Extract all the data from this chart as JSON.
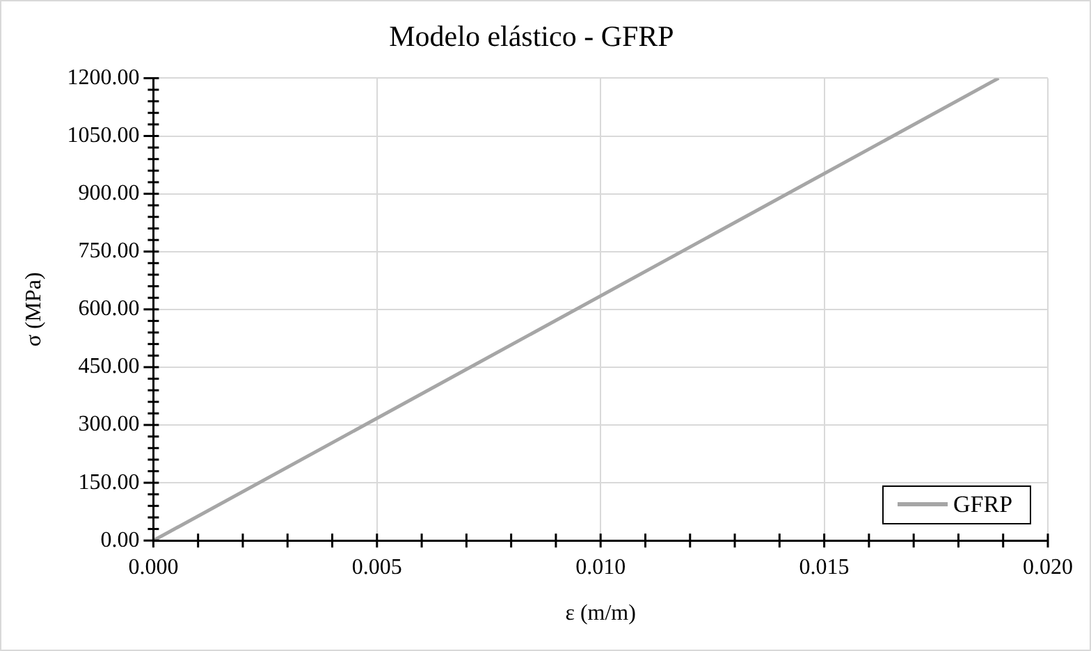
{
  "chart_data": {
    "type": "line",
    "title": "Modelo elástico - GFRP",
    "xlabel": "ε (m/m)",
    "ylabel": "σ (MPa)",
    "x": [
      0,
      0.0189
    ],
    "series": [
      {
        "name": "GFRP",
        "color": "#a6a6a6",
        "values": [
          0,
          1200
        ]
      }
    ],
    "xlim": [
      0,
      0.02
    ],
    "xticks": [
      {
        "value": 0,
        "label": "0.000"
      },
      {
        "value": 0.005,
        "label": "0.005"
      },
      {
        "value": 0.01,
        "label": "0.010"
      },
      {
        "value": 0.015,
        "label": "0.015"
      },
      {
        "value": 0.02,
        "label": "0.020"
      }
    ],
    "ylim": [
      0,
      1200
    ],
    "yticks": [
      {
        "value": 0,
        "label": "0.00"
      },
      {
        "value": 150,
        "label": "150.00"
      },
      {
        "value": 300,
        "label": "300.00"
      },
      {
        "value": 450,
        "label": "450.00"
      },
      {
        "value": 600,
        "label": "600.00"
      },
      {
        "value": 750,
        "label": "750.00"
      },
      {
        "value": 900,
        "label": "900.00"
      },
      {
        "value": 1050,
        "label": "1050.00"
      },
      {
        "value": 1200,
        "label": "1200.00"
      }
    ],
    "grid": true,
    "legend": "bottom right",
    "marker": "none",
    "line_style": "solid"
  }
}
